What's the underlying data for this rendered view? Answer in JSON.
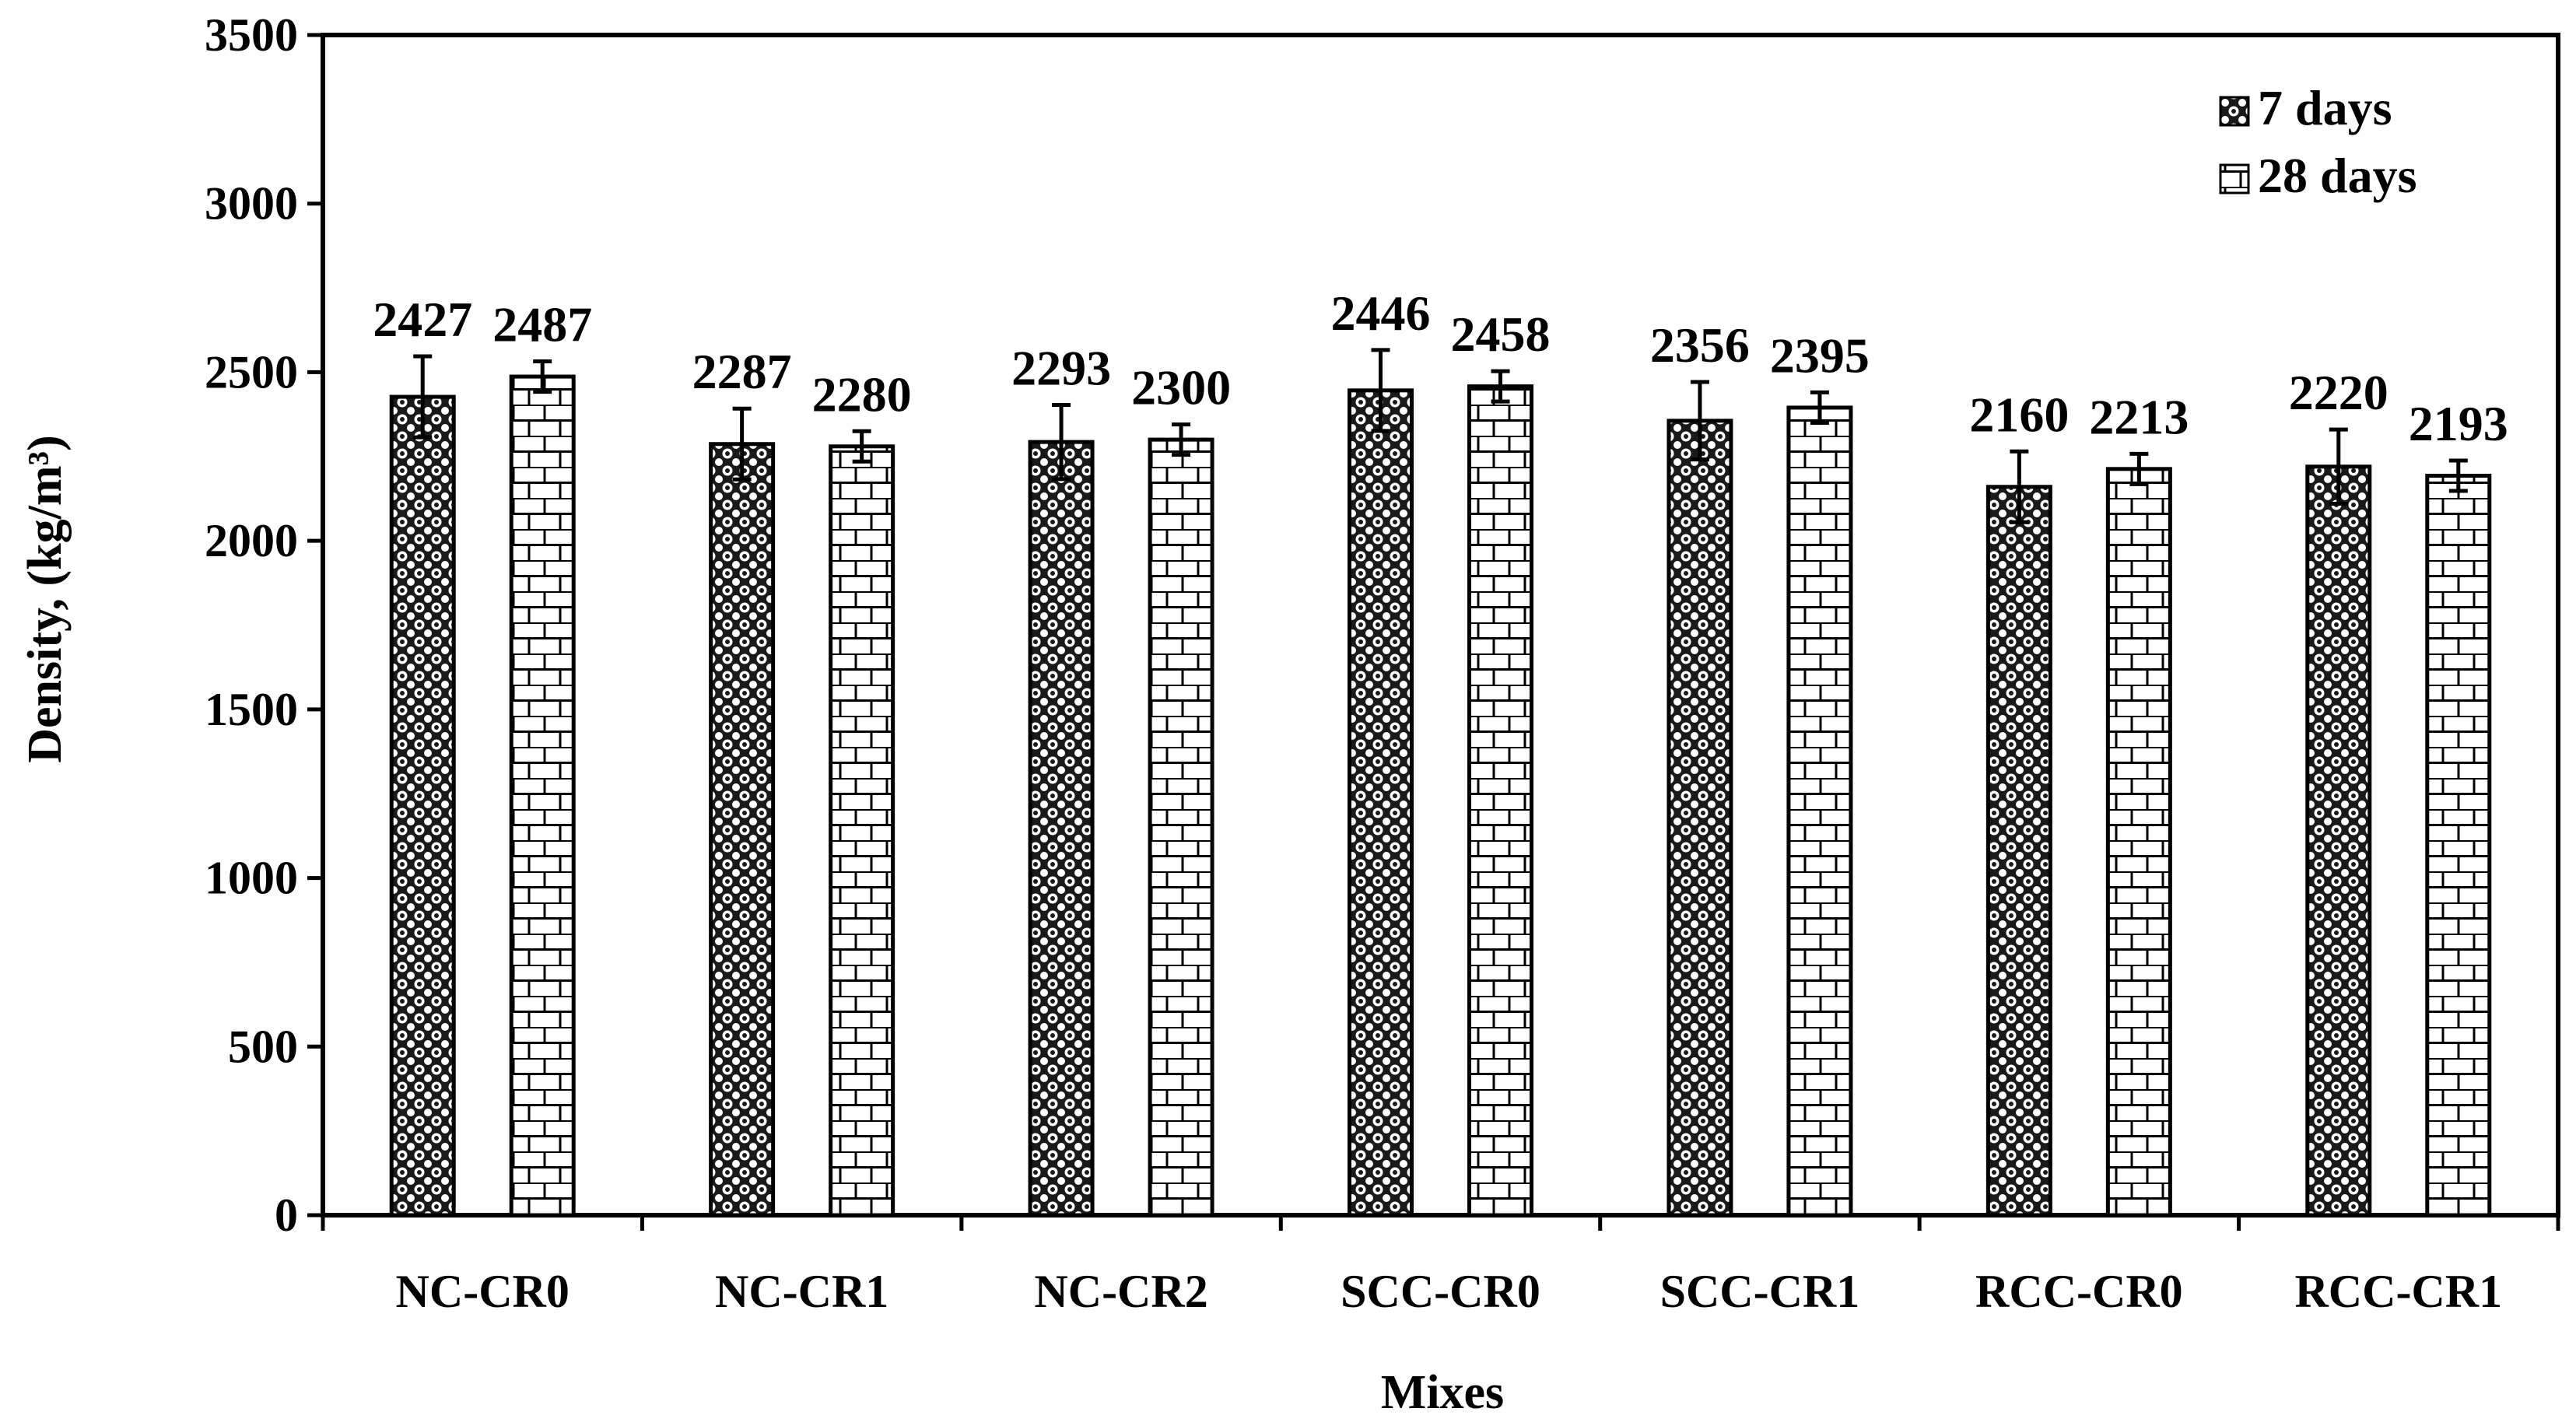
{
  "chart_data": {
    "type": "bar",
    "xlabel": "Mixes",
    "ylabel": "Density, (kg/m³)",
    "ylim": [
      0,
      3500
    ],
    "yticks": [
      0,
      500,
      1000,
      1500,
      2000,
      2500,
      3000,
      3500
    ],
    "categories": [
      "NC-CR0",
      "NC-CR1",
      "NC-CR2",
      "SCC-CR0",
      "SCC-CR1",
      "RCC-CR0",
      "RCC-CR1"
    ],
    "series": [
      {
        "name": "7 days",
        "pattern": "dots",
        "values": [
          2427,
          2287,
          2293,
          2446,
          2356,
          2160,
          2220
        ],
        "error": [
          120,
          105,
          110,
          120,
          115,
          105,
          110
        ]
      },
      {
        "name": "28 days",
        "pattern": "bricks",
        "values": [
          2487,
          2280,
          2300,
          2458,
          2395,
          2213,
          2193
        ],
        "error": [
          45,
          45,
          45,
          45,
          45,
          45,
          45
        ]
      }
    ],
    "grid": false,
    "legend_position": "top-right"
  }
}
